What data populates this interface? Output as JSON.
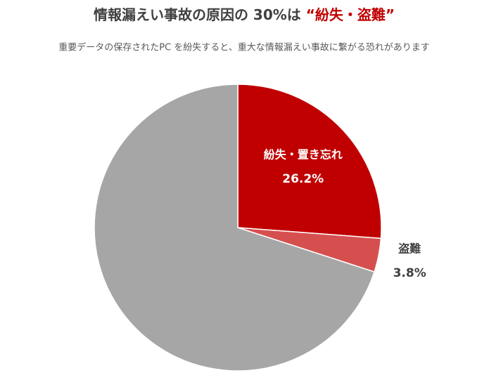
{
  "chart_data": {
    "type": "pie",
    "title": "情報漏えい事故の原因の 30%は ",
    "title_highlight": "“紛失・盗難”",
    "subtitle": "重要データの保存されたPC を紛失すると、重大な情報漏えい事故に繋がる恐れがあります",
    "categories": [
      "紛失・置き忘れ",
      "盗難",
      null
    ],
    "values": [
      26.2,
      3.8,
      70.0
    ],
    "value_labels": [
      "26.2%",
      "3.8%",
      null
    ],
    "colors": [
      "#c00000",
      "#d64f4f",
      "#a6a6a6"
    ],
    "highlight_color": "#c00000"
  }
}
